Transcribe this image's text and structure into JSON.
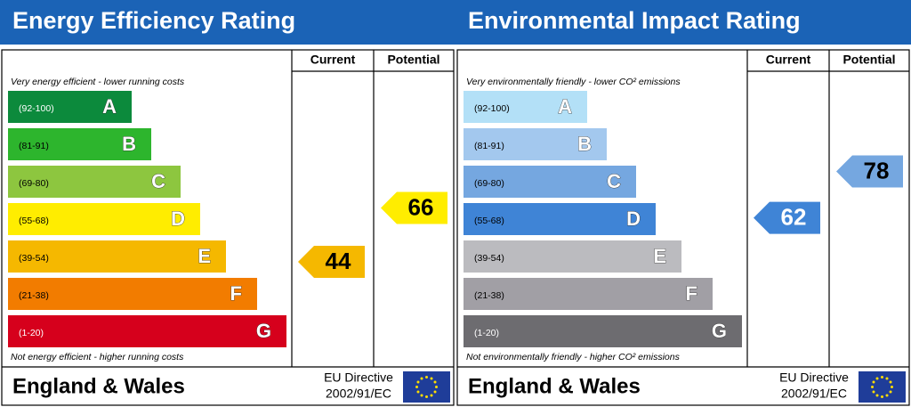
{
  "panels": [
    {
      "title": "Energy Efficiency Rating",
      "headers": [
        "Current",
        "Potential"
      ],
      "top_note": "Very energy efficient - lower running costs",
      "bottom_note": "Not energy efficient - higher running costs",
      "bands": [
        {
          "range": "(92-100)",
          "letter": "A",
          "color": "#0c8a3c"
        },
        {
          "range": "(81-91)",
          "letter": "B",
          "color": "#2db52d"
        },
        {
          "range": "(69-80)",
          "letter": "C",
          "color": "#8dc63f"
        },
        {
          "range": "(55-68)",
          "letter": "D",
          "color": "#ffed00"
        },
        {
          "range": "(39-54)",
          "letter": "E",
          "color": "#f5b800"
        },
        {
          "range": "(21-38)",
          "letter": "F",
          "color": "#f27c00"
        },
        {
          "range": "(1-20)",
          "letter": "G",
          "color": "#d6001c"
        }
      ],
      "current": 44,
      "potential": 66,
      "footer": "England & Wales",
      "directive": [
        "EU Directive",
        "2002/91/EC"
      ]
    },
    {
      "title": "Environmental Impact Rating",
      "headers": [
        "Current",
        "Potential"
      ],
      "top_note": "Very environmentally friendly - lower CO² emissions",
      "bottom_note": "Not environmentally friendly - higher CO² emissions",
      "bands": [
        {
          "range": "(92-100)",
          "letter": "A",
          "color": "#b3e0f7"
        },
        {
          "range": "(81-91)",
          "letter": "B",
          "color": "#a3c8ee"
        },
        {
          "range": "(69-80)",
          "letter": "C",
          "color": "#75a7e0"
        },
        {
          "range": "(55-68)",
          "letter": "D",
          "color": "#3f84d6"
        },
        {
          "range": "(39-54)",
          "letter": "E",
          "color": "#bbbbbf"
        },
        {
          "range": "(21-38)",
          "letter": "F",
          "color": "#a19fa5"
        },
        {
          "range": "(1-20)",
          "letter": "G",
          "color": "#6d6c70"
        }
      ],
      "current": 62,
      "potential": 78,
      "footer": "England & Wales",
      "directive": [
        "EU Directive",
        "2002/91/EC"
      ]
    }
  ]
}
